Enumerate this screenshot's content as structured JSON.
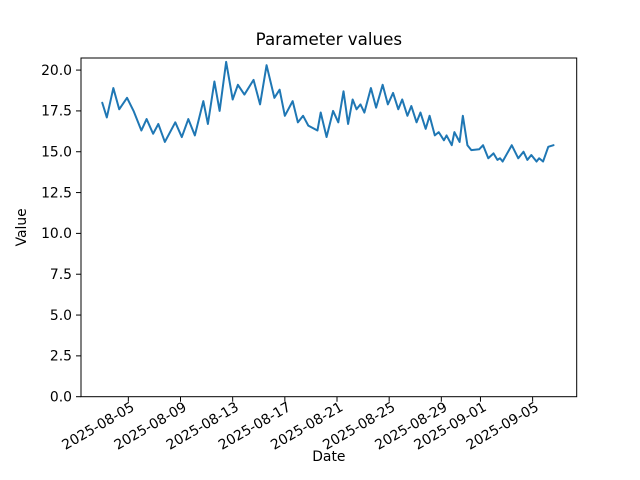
{
  "chart_data": {
    "type": "line",
    "title": "Parameter values",
    "xlabel": "Date",
    "ylabel": "Value",
    "line_color": "#1f77b4",
    "line_width": 2,
    "grid": false,
    "legend": false,
    "ylim": [
      0,
      20.74
    ],
    "y_ticks": [
      0.0,
      2.5,
      5.0,
      7.5,
      10.0,
      12.5,
      15.0,
      17.5,
      20.0
    ],
    "y_tick_labels": [
      "0.0",
      "2.5",
      "5.0",
      "7.5",
      "10.0",
      "12.5",
      "15.0",
      "17.5",
      "20.0"
    ],
    "x_origin_date": "2025-08-03",
    "x_unit": "days",
    "xlim_days": [
      -1.63,
      36.38
    ],
    "x_tick_days": [
      2,
      6,
      10,
      14,
      18,
      22,
      26,
      29,
      33
    ],
    "x_tick_labels": [
      "2025-08-05",
      "2025-08-09",
      "2025-08-13",
      "2025-08-17",
      "2025-08-21",
      "2025-08-25",
      "2025-08-29",
      "2025-09-01",
      "2025-09-05"
    ],
    "x_tick_rotation_deg": 30,
    "series": [
      {
        "name": "parameter-values",
        "points": [
          [
            0.0,
            18.0
          ],
          [
            0.35,
            17.1
          ],
          [
            0.85,
            18.9
          ],
          [
            1.3,
            17.6
          ],
          [
            1.9,
            18.3
          ],
          [
            2.4,
            17.5
          ],
          [
            3.0,
            16.3
          ],
          [
            3.4,
            17.0
          ],
          [
            3.9,
            16.1
          ],
          [
            4.3,
            16.7
          ],
          [
            4.8,
            15.6
          ],
          [
            5.6,
            16.8
          ],
          [
            6.1,
            15.9
          ],
          [
            6.6,
            17.0
          ],
          [
            7.1,
            16.0
          ],
          [
            7.75,
            18.1
          ],
          [
            8.1,
            16.7
          ],
          [
            8.6,
            19.3
          ],
          [
            9.0,
            17.5
          ],
          [
            9.5,
            20.5
          ],
          [
            10.0,
            18.2
          ],
          [
            10.4,
            19.1
          ],
          [
            10.9,
            18.5
          ],
          [
            11.6,
            19.4
          ],
          [
            12.1,
            17.9
          ],
          [
            12.6,
            20.3
          ],
          [
            13.2,
            18.3
          ],
          [
            13.6,
            18.8
          ],
          [
            14.0,
            17.2
          ],
          [
            14.6,
            18.1
          ],
          [
            15.0,
            16.8
          ],
          [
            15.4,
            17.2
          ],
          [
            15.8,
            16.6
          ],
          [
            16.5,
            16.3
          ],
          [
            16.75,
            17.4
          ],
          [
            17.2,
            15.9
          ],
          [
            17.7,
            17.5
          ],
          [
            18.1,
            16.8
          ],
          [
            18.5,
            18.7
          ],
          [
            18.85,
            16.7
          ],
          [
            19.2,
            18.2
          ],
          [
            19.5,
            17.6
          ],
          [
            19.8,
            17.9
          ],
          [
            20.1,
            17.4
          ],
          [
            20.6,
            18.9
          ],
          [
            21.0,
            17.7
          ],
          [
            21.5,
            19.1
          ],
          [
            21.9,
            17.9
          ],
          [
            22.3,
            18.6
          ],
          [
            22.7,
            17.6
          ],
          [
            23.0,
            18.2
          ],
          [
            23.4,
            17.2
          ],
          [
            23.7,
            17.8
          ],
          [
            24.1,
            16.8
          ],
          [
            24.4,
            17.4
          ],
          [
            24.8,
            16.4
          ],
          [
            25.1,
            17.2
          ],
          [
            25.5,
            16.0
          ],
          [
            25.8,
            16.2
          ],
          [
            26.2,
            15.7
          ],
          [
            26.4,
            16.0
          ],
          [
            26.8,
            15.4
          ],
          [
            27.0,
            16.2
          ],
          [
            27.4,
            15.6
          ],
          [
            27.65,
            17.2
          ],
          [
            28.0,
            15.4
          ],
          [
            28.3,
            15.1
          ],
          [
            28.9,
            15.15
          ],
          [
            29.2,
            15.4
          ],
          [
            29.6,
            14.6
          ],
          [
            30.0,
            14.9
          ],
          [
            30.3,
            14.5
          ],
          [
            30.5,
            14.6
          ],
          [
            30.7,
            14.4
          ],
          [
            31.4,
            15.4
          ],
          [
            31.9,
            14.6
          ],
          [
            32.3,
            15.0
          ],
          [
            32.6,
            14.5
          ],
          [
            32.9,
            14.8
          ],
          [
            33.3,
            14.4
          ],
          [
            33.5,
            14.6
          ],
          [
            33.8,
            14.4
          ],
          [
            34.2,
            15.3
          ],
          [
            34.6,
            15.4
          ]
        ]
      }
    ]
  }
}
